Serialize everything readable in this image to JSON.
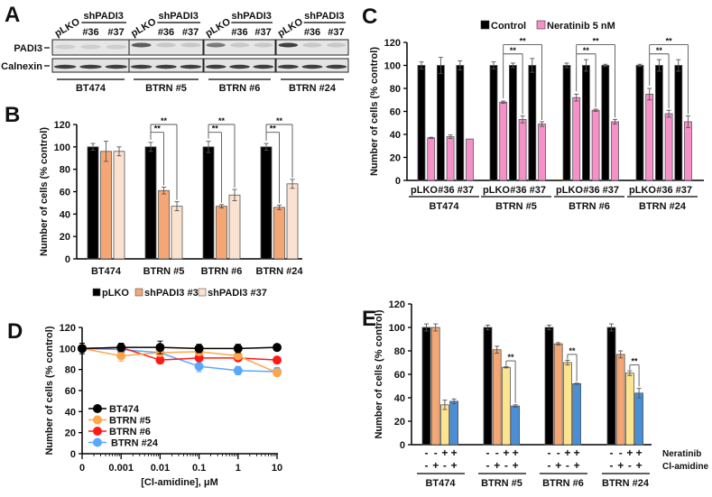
{
  "panels": {
    "a": "A",
    "b": "B",
    "c": "C",
    "d": "D",
    "e": "E"
  },
  "blot": {
    "lane_header_control": "pLKO",
    "lane_header_sh": "shPADI3",
    "clones": [
      "#36",
      "#37"
    ],
    "rows": [
      "PADI3",
      "Calnexin"
    ],
    "groups": [
      "BT474",
      "BTRN #5",
      "BTRN #6",
      "BTRN #24"
    ]
  },
  "sig": "**",
  "chart_data": [
    {
      "id": "B",
      "type": "bar",
      "ylabel": "Number of cells (% control)",
      "ylim": [
        0,
        120
      ],
      "yticks": [
        0,
        20,
        40,
        60,
        80,
        100,
        120
      ],
      "categories": [
        "BT474",
        "BTRN #5",
        "BTRN #6",
        "BTRN #24"
      ],
      "legend_position": "bottom",
      "series": [
        {
          "name": "pLKO",
          "color": "#000000",
          "values": [
            100,
            100,
            100,
            100
          ],
          "errors": [
            3,
            4,
            5,
            3
          ]
        },
        {
          "name": "shPADI3 #36",
          "color": "#f4a774",
          "values": [
            96,
            61,
            47,
            46
          ],
          "errors": [
            9,
            3,
            1.5,
            2
          ]
        },
        {
          "name": "shPADI3 #37",
          "color": "#fbe1cf",
          "values": [
            96,
            47,
            57,
            67
          ],
          "errors": [
            4,
            4,
            5,
            4
          ]
        }
      ]
    },
    {
      "id": "C",
      "type": "bar",
      "ylabel": "Number of cells (% control)",
      "ylim": [
        0,
        120
      ],
      "yticks": [
        0,
        20,
        40,
        60,
        80,
        100,
        120
      ],
      "categories": [
        "BT474",
        "BTRN #5",
        "BTRN #6",
        "BTRN #24"
      ],
      "subcategories": [
        "pLKO",
        "#36",
        "#37"
      ],
      "legend_position": "top",
      "series": [
        {
          "name": "Control",
          "color": "#000000",
          "values": [
            [
              100,
              100,
              100
            ],
            [
              100,
              100,
              100
            ],
            [
              100,
              100,
              100
            ],
            [
              100,
              100,
              100
            ]
          ],
          "errors": [
            [
              3,
              7,
              4
            ],
            [
              3,
              2,
              6
            ],
            [
              2,
              5,
              1
            ],
            [
              1,
              5,
              5
            ]
          ]
        },
        {
          "name": "Neratinib 5 nM",
          "color": "#f590c8",
          "values": [
            [
              37,
              38,
              36
            ],
            [
              68,
              53,
              49
            ],
            [
              72,
              61,
              51
            ],
            [
              75,
              58,
              51
            ]
          ],
          "errors": [
            [
              0.5,
              1.5,
              0
            ],
            [
              1,
              3,
              2
            ],
            [
              3,
              1,
              2
            ],
            [
              5,
              3,
              5
            ]
          ]
        }
      ]
    },
    {
      "id": "D",
      "type": "line",
      "ylabel": "Number of cells (% control)",
      "xlabel": "[Cl-amidine], μM",
      "ylim": [
        0,
        120
      ],
      "yticks": [
        0,
        20,
        40,
        60,
        80,
        100,
        120
      ],
      "x": [
        "0",
        "0.001",
        "0.01",
        "0.1",
        "1",
        "10"
      ],
      "xscale": "log",
      "legend_position": "bottom-left",
      "series": [
        {
          "name": "BT474",
          "color": "#000000",
          "values": [
            100,
            101,
            101,
            100,
            100,
            101
          ],
          "errors": [
            5,
            4,
            6,
            4,
            4,
            1
          ]
        },
        {
          "name": "BTRN #5",
          "color": "#ffa64d",
          "values": [
            100,
            93,
            96,
            97,
            93,
            77
          ],
          "errors": [
            3,
            5,
            3,
            2,
            3,
            3
          ]
        },
        {
          "name": "BTRN #6",
          "color": "#ff1a1a",
          "values": [
            100,
            101,
            89,
            91,
            91,
            89
          ],
          "errors": [
            2,
            2,
            2,
            3,
            2,
            1
          ]
        },
        {
          "name": "BTRN #24",
          "color": "#5aa7ff",
          "values": [
            100,
            99,
            96,
            83,
            79,
            78
          ],
          "errors": [
            2,
            2,
            3,
            5,
            4,
            4
          ]
        }
      ]
    },
    {
      "id": "E",
      "type": "bar",
      "ylabel": "Number of cells (% control)",
      "ylim": [
        0,
        120
      ],
      "yticks": [
        0,
        20,
        40,
        60,
        80,
        100,
        120
      ],
      "categories": [
        "BT474",
        "BTRN #5",
        "BTRN #6",
        "BTRN #24"
      ],
      "conditions": [
        {
          "name": "Neratinib",
          "marks": [
            "-",
            "-",
            "+",
            "+"
          ]
        },
        {
          "name": "Cl-amidine",
          "marks": [
            "-",
            "+",
            "-",
            "+"
          ]
        }
      ],
      "series": [
        {
          "name": "-/-",
          "color": "#000000",
          "values": [
            100,
            100,
            100,
            100
          ],
          "errors": [
            3,
            2,
            2,
            3
          ]
        },
        {
          "name": "Cl-amidine",
          "color": "#f4a774",
          "values": [
            100,
            81,
            86,
            77
          ],
          "errors": [
            3,
            3,
            1,
            3
          ]
        },
        {
          "name": "Neratinib",
          "color": "#fde48f",
          "values": [
            34,
            66,
            70,
            61
          ],
          "errors": [
            4,
            0.5,
            2,
            2
          ]
        },
        {
          "name": "Neratinib + Cl-amidine",
          "color": "#4a8fd6",
          "values": [
            37,
            33,
            52,
            44
          ],
          "errors": [
            2,
            1,
            0.5,
            4
          ]
        }
      ]
    }
  ]
}
